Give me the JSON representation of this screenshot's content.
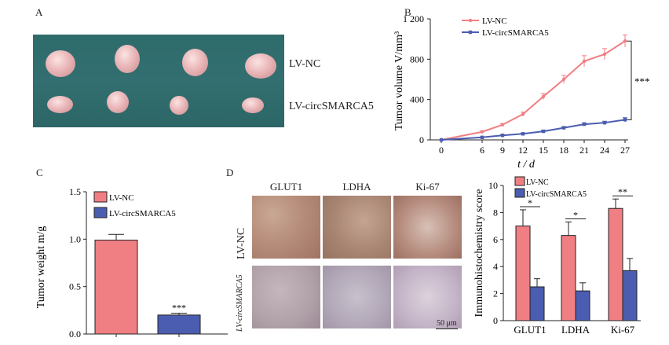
{
  "panels": {
    "a": {
      "letter": "A",
      "row_labels": [
        "LV-NC",
        "LV-circSMARCA5"
      ]
    },
    "b": {
      "letter": "B",
      "significance": "***"
    },
    "c": {
      "letter": "C",
      "significance": "***"
    },
    "d": {
      "letter": "D",
      "ihc_columns": [
        "GLUT1",
        "LDHA",
        "Ki-67"
      ],
      "ihc_rows": [
        "LV-NC",
        "LV-circSMARCA5"
      ],
      "scale_bar": "50 μm",
      "significance": [
        "*",
        "*",
        "**"
      ]
    }
  },
  "colors": {
    "nc": "#f07f84",
    "circ": "#4b5db0",
    "background_green": "#2f6e6e"
  },
  "chart_data": [
    {
      "id": "tumor-volume",
      "type": "line",
      "title": "",
      "xlabel": "t / d",
      "ylabel": "Tumor volume V/mm³",
      "x": [
        0,
        6,
        9,
        12,
        15,
        18,
        21,
        24,
        27
      ],
      "xlim": [
        0,
        27
      ],
      "ylim": [
        0,
        1200
      ],
      "yticks": [
        0,
        400,
        800,
        1200
      ],
      "ytick_labels": [
        "0",
        "400",
        "800",
        "1 200"
      ],
      "series": [
        {
          "name": "LV-NC",
          "values": [
            0,
            80,
            150,
            255,
            430,
            600,
            780,
            850,
            980
          ],
          "errors": [
            0,
            8,
            12,
            20,
            30,
            40,
            55,
            55,
            60
          ]
        },
        {
          "name": "LV-circSMARCA5",
          "values": [
            0,
            25,
            45,
            60,
            85,
            120,
            155,
            170,
            200
          ],
          "errors": [
            0,
            5,
            6,
            8,
            10,
            12,
            15,
            15,
            20
          ]
        }
      ],
      "legend": "top-left",
      "grid": false
    },
    {
      "id": "tumor-weight",
      "type": "bar",
      "title": "",
      "xlabel": "",
      "ylabel": "Tumor weight m/g",
      "categories": [
        "LV-NC",
        "LV-circSMARCA5"
      ],
      "values": [
        0.99,
        0.2
      ],
      "errors": [
        0.06,
        0.02
      ],
      "ylim": [
        0,
        1.5
      ],
      "yticks": [
        0,
        0.5,
        1.0,
        1.5
      ],
      "ytick_labels": [
        "0.0",
        "0.5",
        "1.0",
        "1.5"
      ],
      "legend": "top-left",
      "grid": false
    },
    {
      "id": "ihc-score",
      "type": "bar",
      "title": "",
      "xlabel": "",
      "ylabel": "Immunohistochemistry score",
      "categories": [
        "GLUT1",
        "LDHA",
        "Ki-67"
      ],
      "series": [
        {
          "name": "LV-NC",
          "values": [
            7.0,
            6.3,
            8.3
          ],
          "errors": [
            1.2,
            1.0,
            0.7
          ]
        },
        {
          "name": "LV-circSMARCA5",
          "values": [
            2.5,
            2.2,
            3.7
          ],
          "errors": [
            0.6,
            0.6,
            0.9
          ]
        }
      ],
      "ylim": [
        0,
        10
      ],
      "yticks": [
        0,
        2,
        4,
        6,
        8,
        10
      ],
      "legend": "top-left",
      "grid": false
    }
  ]
}
